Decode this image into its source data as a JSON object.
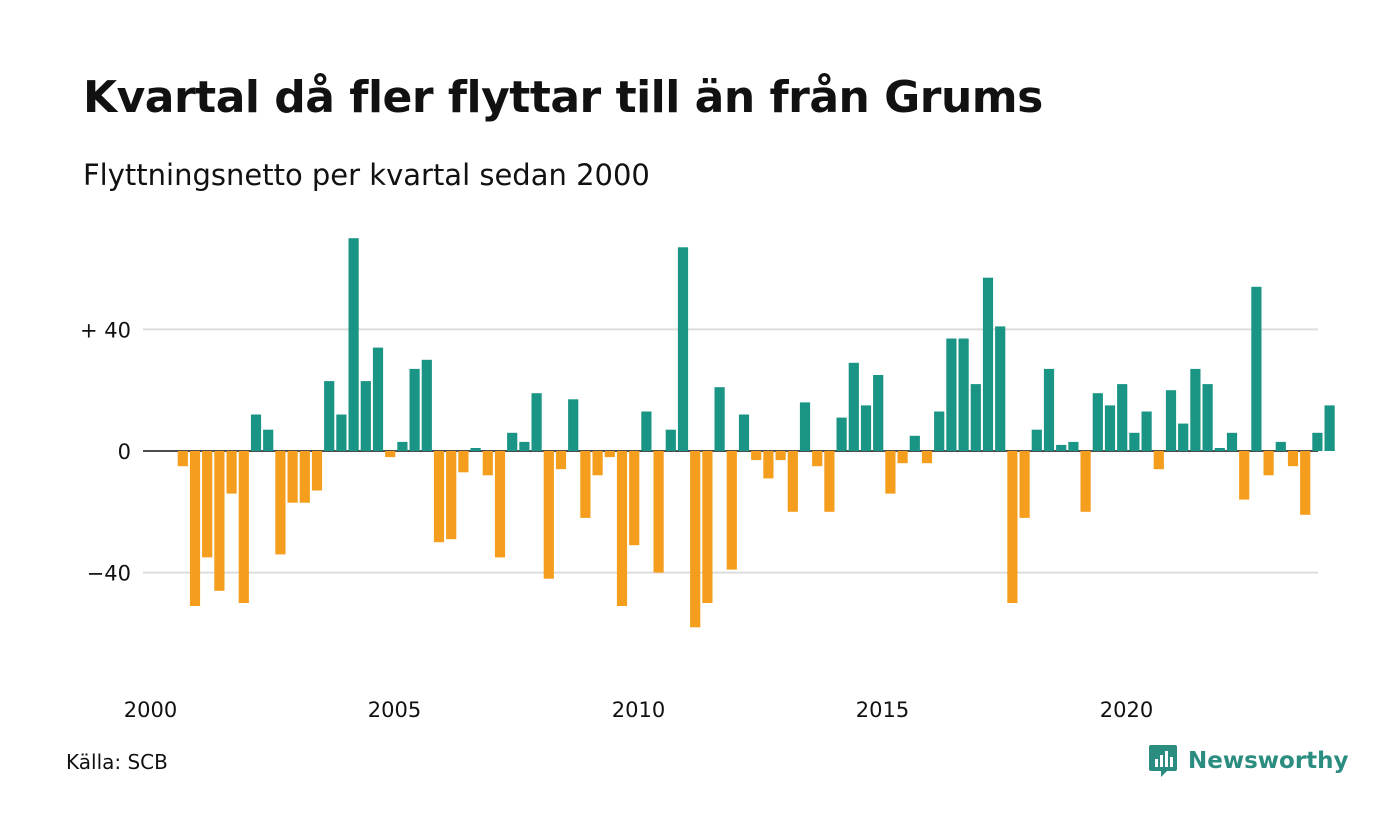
{
  "title": "Kvartal då fler flyttar till än från Grums",
  "subtitle": "Flyttningsnetto per kvartal sedan 2000",
  "source": "Källa: SCB",
  "brand": "Newsworthy",
  "colors": {
    "positive": "#1a9484",
    "negative": "#f59e1d",
    "grid": "#dddddd",
    "brand": "#2b8c80"
  },
  "chart_data": {
    "type": "bar",
    "start": "2000 Q1",
    "y_ticks": [
      {
        "value": 40,
        "label": "+ 40"
      },
      {
        "value": 0,
        "label": "0"
      },
      {
        "value": -40,
        "label": "−40"
      }
    ],
    "x_ticks": [
      {
        "year": 2000,
        "label": "2000"
      },
      {
        "year": 2005,
        "label": "2005"
      },
      {
        "year": 2010,
        "label": "2010"
      },
      {
        "year": 2015,
        "label": "2015"
      },
      {
        "year": 2020,
        "label": "2020"
      }
    ],
    "ylim": [
      -70,
      70
    ],
    "grid": true,
    "values": [
      0,
      -5,
      -51,
      -35,
      -46,
      -14,
      -50,
      12,
      7,
      -34,
      -17,
      -17,
      -13,
      23,
      12,
      70,
      23,
      34,
      -2,
      3,
      27,
      30,
      -30,
      -29,
      -7,
      1,
      -8,
      -35,
      6,
      3,
      19,
      -42,
      -6,
      17,
      -22,
      -8,
      -2,
      -51,
      -31,
      13,
      -40,
      7,
      67,
      -58,
      -50,
      21,
      -39,
      12,
      -3,
      -9,
      -3,
      -20,
      16,
      -5,
      -20,
      11,
      29,
      15,
      25,
      -14,
      -4,
      5,
      -4,
      13,
      37,
      37,
      22,
      57,
      41,
      -50,
      -22,
      7,
      27,
      2,
      3,
      -20,
      19,
      15,
      22,
      6,
      13,
      -6,
      20,
      9,
      27,
      22,
      1,
      6,
      -16,
      54,
      -8,
      3,
      -5,
      -21,
      6,
      15
    ]
  }
}
